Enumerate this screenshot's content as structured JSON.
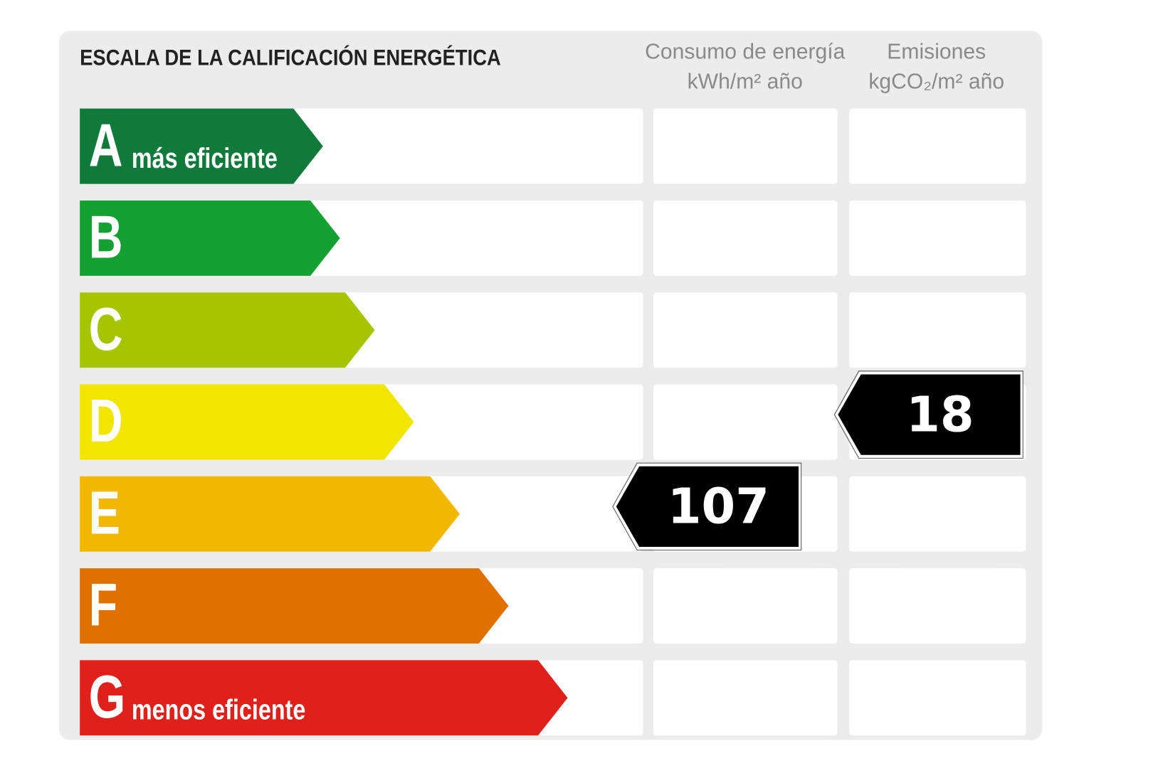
{
  "header": {
    "title": "ESCALA DE LA CALIFICACIÓN ENERGÉTICA"
  },
  "columns": {
    "consumption": {
      "name": "Consumo de energía",
      "unit": "kWh/m² año"
    },
    "emissions": {
      "name": "Emisiones",
      "unit": "kgCO₂/m² año"
    }
  },
  "rows": [
    {
      "letter": "A",
      "label": "más eficiente",
      "color": "#0f7a3a"
    },
    {
      "letter": "B",
      "color": "#15a032"
    },
    {
      "letter": "C",
      "color": "#a6c400"
    },
    {
      "letter": "D",
      "color": "#f2e600"
    },
    {
      "letter": "E",
      "color": "#f2b800"
    },
    {
      "letter": "F",
      "color": "#e07000"
    },
    {
      "letter": "G",
      "label": "menos eficiente",
      "color": "#e0201a"
    }
  ],
  "ratings": {
    "consumption": {
      "value": 107,
      "rating": "E"
    },
    "emissions": {
      "value": 18,
      "rating": "D"
    }
  }
}
